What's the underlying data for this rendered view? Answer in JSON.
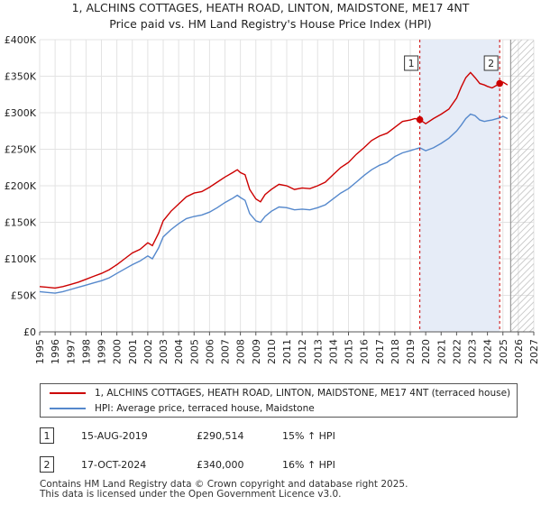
{
  "header": {
    "title_line1": "1, ALCHINS COTTAGES, HEATH ROAD, LINTON, MAIDSTONE, ME17 4NT",
    "title_line2": "Price paid vs. HM Land Registry's House Price Index (HPI)"
  },
  "chart_data": {
    "type": "line",
    "title": "Price paid vs. HM Land Registry's House Price Index (HPI)",
    "xlabel": "",
    "ylabel": "",
    "xlim": [
      1995,
      2027
    ],
    "ylim": [
      0,
      400000
    ],
    "x_ticks": [
      "1995",
      "1996",
      "1997",
      "1998",
      "1999",
      "2000",
      "2001",
      "2002",
      "2003",
      "2004",
      "2005",
      "2006",
      "2007",
      "2008",
      "2009",
      "2010",
      "2011",
      "2012",
      "2013",
      "2014",
      "2015",
      "2016",
      "2017",
      "2018",
      "2019",
      "2020",
      "2021",
      "2022",
      "2023",
      "2024",
      "2025",
      "2026",
      "2027"
    ],
    "y_ticks": [
      {
        "value": 0,
        "label": "£0"
      },
      {
        "value": 50000,
        "label": "£50K"
      },
      {
        "value": 100000,
        "label": "£100K"
      },
      {
        "value": 150000,
        "label": "£150K"
      },
      {
        "value": 200000,
        "label": "£200K"
      },
      {
        "value": 250000,
        "label": "£250K"
      },
      {
        "value": 300000,
        "label": "£300K"
      },
      {
        "value": 350000,
        "label": "£350K"
      },
      {
        "value": 400000,
        "label": "£400K"
      }
    ],
    "series": [
      {
        "name": "1, ALCHINS COTTAGES, HEATH ROAD, LINTON, MAIDSTONE, ME17 4NT (terraced house)",
        "color": "#cc0000",
        "points": [
          [
            1995.0,
            62000
          ],
          [
            1995.5,
            61000
          ],
          [
            1996.0,
            60000
          ],
          [
            1996.5,
            62000
          ],
          [
            1997.0,
            65000
          ],
          [
            1997.5,
            68000
          ],
          [
            1998.0,
            72000
          ],
          [
            1998.5,
            76000
          ],
          [
            1999.0,
            80000
          ],
          [
            1999.5,
            85000
          ],
          [
            2000.0,
            92000
          ],
          [
            2000.5,
            100000
          ],
          [
            2001.0,
            108000
          ],
          [
            2001.5,
            113000
          ],
          [
            2002.0,
            122000
          ],
          [
            2002.3,
            118000
          ],
          [
            2002.7,
            135000
          ],
          [
            2003.0,
            152000
          ],
          [
            2003.5,
            165000
          ],
          [
            2004.0,
            175000
          ],
          [
            2004.5,
            185000
          ],
          [
            2005.0,
            190000
          ],
          [
            2005.5,
            192000
          ],
          [
            2006.0,
            198000
          ],
          [
            2006.5,
            205000
          ],
          [
            2007.0,
            212000
          ],
          [
            2007.5,
            218000
          ],
          [
            2007.8,
            222000
          ],
          [
            2008.0,
            218000
          ],
          [
            2008.3,
            215000
          ],
          [
            2008.6,
            195000
          ],
          [
            2009.0,
            182000
          ],
          [
            2009.3,
            178000
          ],
          [
            2009.6,
            188000
          ],
          [
            2010.0,
            195000
          ],
          [
            2010.5,
            202000
          ],
          [
            2011.0,
            200000
          ],
          [
            2011.5,
            195000
          ],
          [
            2012.0,
            197000
          ],
          [
            2012.5,
            196000
          ],
          [
            2013.0,
            200000
          ],
          [
            2013.5,
            205000
          ],
          [
            2014.0,
            215000
          ],
          [
            2014.5,
            225000
          ],
          [
            2015.0,
            232000
          ],
          [
            2015.5,
            243000
          ],
          [
            2016.0,
            252000
          ],
          [
            2016.5,
            262000
          ],
          [
            2017.0,
            268000
          ],
          [
            2017.5,
            272000
          ],
          [
            2018.0,
            280000
          ],
          [
            2018.5,
            288000
          ],
          [
            2019.0,
            290000
          ],
          [
            2019.3,
            292000
          ],
          [
            2019.62,
            290514
          ],
          [
            2020.0,
            285000
          ],
          [
            2020.5,
            292000
          ],
          [
            2021.0,
            298000
          ],
          [
            2021.5,
            305000
          ],
          [
            2022.0,
            320000
          ],
          [
            2022.3,
            335000
          ],
          [
            2022.6,
            348000
          ],
          [
            2022.9,
            355000
          ],
          [
            2023.2,
            348000
          ],
          [
            2023.5,
            340000
          ],
          [
            2023.8,
            338000
          ],
          [
            2024.0,
            336000
          ],
          [
            2024.3,
            334000
          ],
          [
            2024.79,
            340000
          ],
          [
            2025.0,
            342000
          ],
          [
            2025.3,
            338000
          ]
        ]
      },
      {
        "name": "HPI: Average price, terraced house, Maidstone",
        "color": "#5588cc",
        "points": [
          [
            1995.0,
            55000
          ],
          [
            1995.5,
            54000
          ],
          [
            1996.0,
            53000
          ],
          [
            1996.5,
            55000
          ],
          [
            1997.0,
            58000
          ],
          [
            1997.5,
            61000
          ],
          [
            1998.0,
            64000
          ],
          [
            1998.5,
            67000
          ],
          [
            1999.0,
            70000
          ],
          [
            1999.5,
            74000
          ],
          [
            2000.0,
            80000
          ],
          [
            2000.5,
            86000
          ],
          [
            2001.0,
            92000
          ],
          [
            2001.5,
            97000
          ],
          [
            2002.0,
            104000
          ],
          [
            2002.3,
            100000
          ],
          [
            2002.7,
            115000
          ],
          [
            2003.0,
            130000
          ],
          [
            2003.5,
            140000
          ],
          [
            2004.0,
            148000
          ],
          [
            2004.5,
            155000
          ],
          [
            2005.0,
            158000
          ],
          [
            2005.5,
            160000
          ],
          [
            2006.0,
            164000
          ],
          [
            2006.5,
            170000
          ],
          [
            2007.0,
            177000
          ],
          [
            2007.5,
            183000
          ],
          [
            2007.8,
            187000
          ],
          [
            2008.0,
            184000
          ],
          [
            2008.3,
            180000
          ],
          [
            2008.6,
            162000
          ],
          [
            2009.0,
            152000
          ],
          [
            2009.3,
            150000
          ],
          [
            2009.6,
            158000
          ],
          [
            2010.0,
            165000
          ],
          [
            2010.5,
            171000
          ],
          [
            2011.0,
            170000
          ],
          [
            2011.5,
            167000
          ],
          [
            2012.0,
            168000
          ],
          [
            2012.5,
            167000
          ],
          [
            2013.0,
            170000
          ],
          [
            2013.5,
            174000
          ],
          [
            2014.0,
            182000
          ],
          [
            2014.5,
            190000
          ],
          [
            2015.0,
            196000
          ],
          [
            2015.5,
            205000
          ],
          [
            2016.0,
            214000
          ],
          [
            2016.5,
            222000
          ],
          [
            2017.0,
            228000
          ],
          [
            2017.5,
            232000
          ],
          [
            2018.0,
            240000
          ],
          [
            2018.5,
            245000
          ],
          [
            2019.0,
            248000
          ],
          [
            2019.3,
            250000
          ],
          [
            2019.62,
            252000
          ],
          [
            2020.0,
            248000
          ],
          [
            2020.5,
            252000
          ],
          [
            2021.0,
            258000
          ],
          [
            2021.5,
            265000
          ],
          [
            2022.0,
            275000
          ],
          [
            2022.3,
            283000
          ],
          [
            2022.6,
            292000
          ],
          [
            2022.9,
            298000
          ],
          [
            2023.2,
            296000
          ],
          [
            2023.5,
            290000
          ],
          [
            2023.8,
            288000
          ],
          [
            2024.0,
            289000
          ],
          [
            2024.3,
            290000
          ],
          [
            2024.79,
            293000
          ],
          [
            2025.0,
            295000
          ],
          [
            2025.3,
            292000
          ]
        ]
      }
    ],
    "annotations": [
      {
        "label": "1",
        "x": 2019.62,
        "y": 290514
      },
      {
        "label": "2",
        "x": 2024.79,
        "y": 340000
      }
    ],
    "shaded_region": {
      "x_from": 2019.62,
      "x_to": 2024.79,
      "color": "#e6ecf7"
    },
    "hatched_region": {
      "x_from": 2025.5,
      "x_to": 2027
    }
  },
  "legend": {
    "items": [
      {
        "label": "1, ALCHINS COTTAGES, HEATH ROAD, LINTON, MAIDSTONE, ME17 4NT (terraced house)",
        "color": "#cc0000"
      },
      {
        "label": "HPI: Average price, terraced house, Maidstone",
        "color": "#5588cc"
      }
    ]
  },
  "sales": [
    {
      "num": "1",
      "date": "15-AUG-2019",
      "price": "£290,514",
      "hpi": "15% ↑ HPI"
    },
    {
      "num": "2",
      "date": "17-OCT-2024",
      "price": "£340,000",
      "hpi": "16% ↑ HPI"
    }
  ],
  "footer": {
    "line1": "Contains HM Land Registry data © Crown copyright and database right 2025.",
    "line2": "This data is licensed under the Open Government Licence v3.0."
  }
}
